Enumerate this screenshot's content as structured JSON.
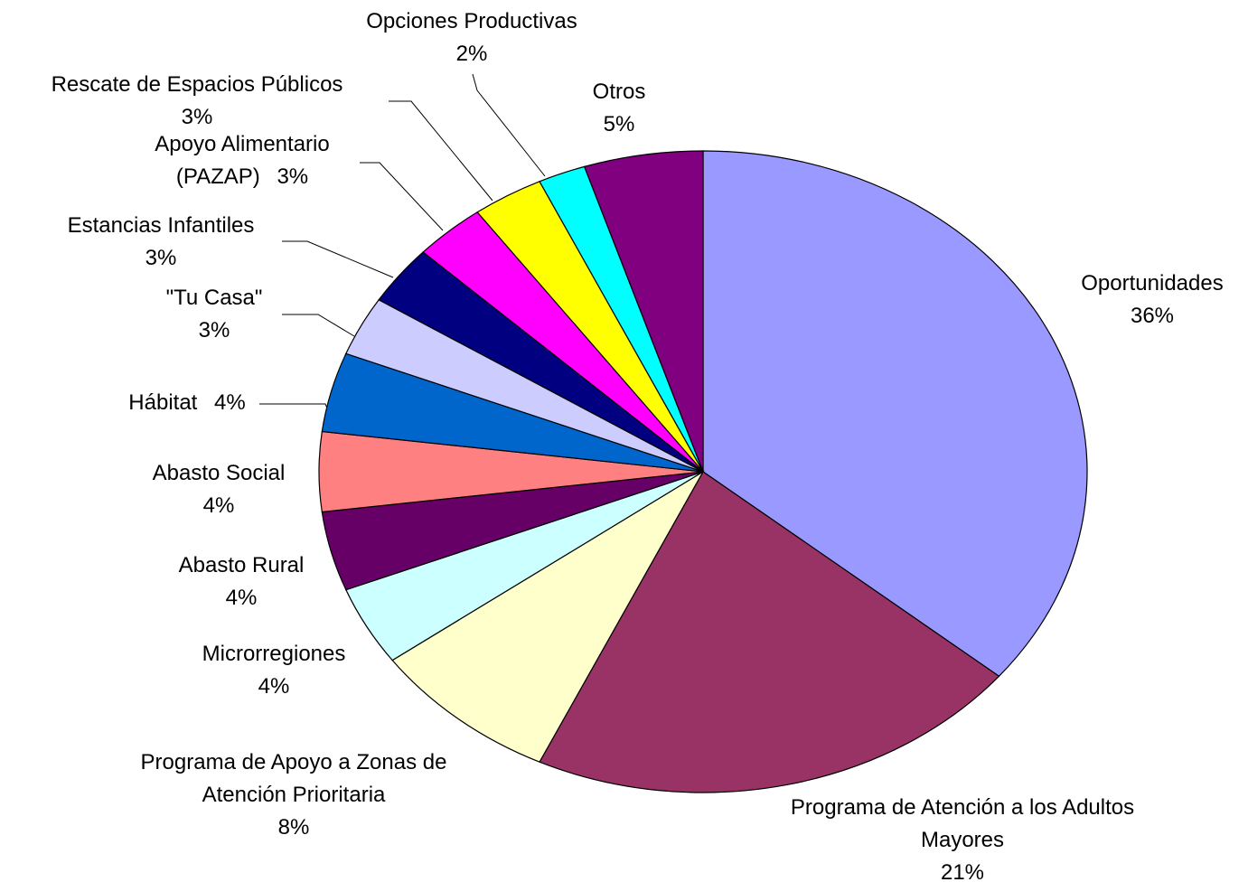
{
  "chart_data": {
    "type": "pie",
    "categories": [
      "Oportunidades",
      "Programa de Atención a los Adultos Mayores",
      "Programa de Apoyo a Zonas de Atención Prioritaria",
      "Microrregiones",
      "Abasto Rural",
      "Abasto Social",
      "Hábitat",
      "\"Tu Casa\"",
      "Estancias Infantiles",
      "Apoyo Alimentario (PAZAP)",
      "Rescate de Espacios Públicos",
      "Opciones Productivas",
      "Otros"
    ],
    "values": [
      36,
      21,
      8,
      4,
      4,
      4,
      4,
      3,
      3,
      3,
      3,
      2,
      5
    ],
    "value_labels": [
      "36%",
      "21%",
      "8%",
      "4%",
      "4%",
      "4%",
      "4%",
      "3%",
      "3%",
      "3%",
      "3%",
      "2%",
      "5%"
    ],
    "colors": [
      "#9999ff",
      "#993366",
      "#ffffcc",
      "#ccffff",
      "#660066",
      "#ff8080",
      "#0066cc",
      "#ccccff",
      "#000080",
      "#ff00ff",
      "#ffff00",
      "#00ffff",
      "#800080"
    ]
  }
}
